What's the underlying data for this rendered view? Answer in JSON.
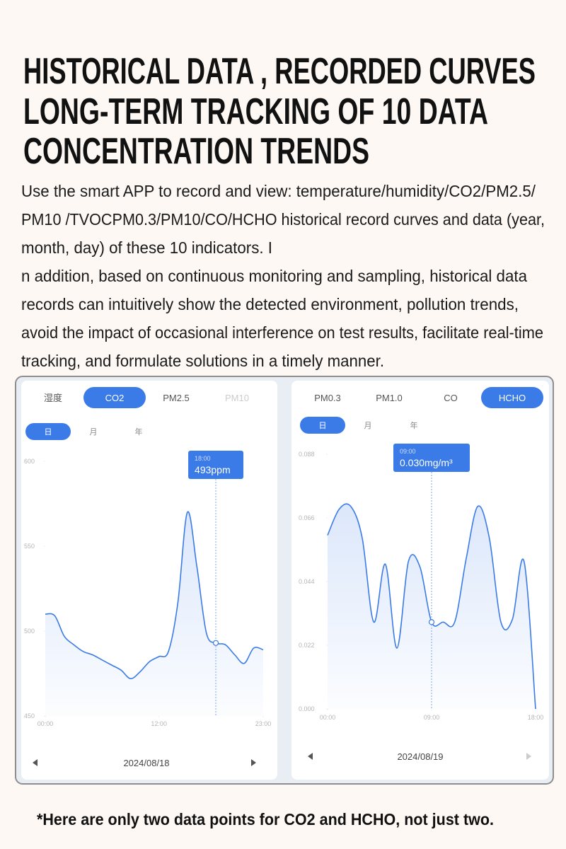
{
  "header": {
    "title_lines": [
      "HISTORICAL DATA , RECORDED CURVES",
      "LONG-TERM TRACKING OF 10 DATA",
      "CONCENTRATION TRENDS"
    ]
  },
  "body": {
    "lines": [
      "Use the smart APP to record and view: temperature/humidity/CO2/PM2.5/",
      "PM10 /TVOCPM0.3/PM10/CO/HCHO historical record curves and data (year,",
      "month, day) of these 10 indicators. I",
      "n addition, based on continuous monitoring and sampling, historical data",
      "records can intuitively show the detected environment, pollution trends,",
      "avoid the impact of occasional interference on test results, facilitate real-time",
      "tracking, and formulate solutions in a timely manner."
    ]
  },
  "panels": [
    {
      "tabs": [
        "湿度",
        "CO2",
        "PM2.5",
        "PM10"
      ],
      "active_tab": 1,
      "periods": [
        "日",
        "月",
        "年"
      ],
      "active_period": 0,
      "tooltip": {
        "time": "18:00",
        "value": "493ppm"
      },
      "date": "2024/08/18",
      "chart": {
        "type": "line",
        "color": "#3b7be8",
        "x": [
          0,
          1,
          2,
          3,
          4,
          5,
          6,
          7,
          8,
          9,
          10,
          11,
          12,
          13,
          14,
          15,
          16,
          17,
          18,
          19,
          20,
          21,
          22,
          23
        ],
        "values": [
          510,
          509,
          497,
          492,
          488,
          486,
          483,
          480,
          477,
          472,
          476,
          482,
          485,
          488,
          517,
          570,
          538,
          499,
          493,
          492,
          486,
          481,
          490,
          489
        ],
        "xlim": [
          0,
          23
        ],
        "xticks": [
          {
            "value": 0,
            "label": "00:00"
          },
          {
            "value": 12,
            "label": "12:00"
          },
          {
            "value": 23,
            "label": "23:00"
          }
        ],
        "ylim": [
          450,
          600
        ],
        "yticks": [
          450,
          500,
          550,
          600
        ]
      }
    },
    {
      "tabs": [
        "PM0.3",
        "PM1.0",
        "CO",
        "HCHO"
      ],
      "active_tab": 3,
      "periods": [
        "日",
        "月",
        "年"
      ],
      "active_period": 0,
      "tooltip": {
        "time": "09:00",
        "value": "0.030mg/m³"
      },
      "date": "2024/08/19",
      "chart": {
        "type": "line",
        "color": "#3b7be8",
        "x": [
          0,
          1,
          2,
          3,
          4,
          5,
          6,
          7,
          8,
          9,
          10,
          11,
          12,
          13,
          14,
          15,
          16,
          17,
          18
        ],
        "values": [
          0.06,
          0.069,
          0.07,
          0.059,
          0.03,
          0.05,
          0.021,
          0.051,
          0.049,
          0.03,
          0.03,
          0.03,
          0.052,
          0.07,
          0.059,
          0.03,
          0.031,
          0.051,
          0.0
        ],
        "xlim": [
          0,
          18
        ],
        "xticks": [
          {
            "value": 0,
            "label": "00:00"
          },
          {
            "value": 9,
            "label": "09:00"
          },
          {
            "value": 18,
            "label": "18:00"
          }
        ],
        "ylim": [
          0,
          0.088
        ],
        "yticks": [
          {
            "value": 0,
            "label": "0.000"
          },
          0.022,
          0.044,
          0.066,
          0.088
        ]
      }
    }
  ],
  "footer": {
    "note": "*Here are only two data points for CO2 and HCHO, not just two."
  }
}
